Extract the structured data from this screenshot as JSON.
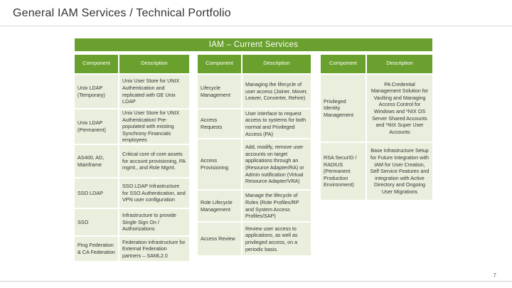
{
  "page": {
    "title": "General IAM Services / Technical Portfolio",
    "page_number": "7"
  },
  "banner": {
    "title": "IAM – Current Services"
  },
  "headers": {
    "component": "Component",
    "description": "Description"
  },
  "table1": [
    {
      "component": "Unix LDAP (Temporary)",
      "description": "Unix User Store for UNIX Authentication and replicated with GE Unix LDAP"
    },
    {
      "component": "Unix LDAP (Permanent)",
      "description": "Unix User Store for UNIX Authentication/ Pre-populated with existing Synchrony Financials employees"
    },
    {
      "component": "AS400, AD, Mainframe",
      "description": "Critical core of core assets for account provisioning, PA mgmt., and Role Mgmt."
    },
    {
      "component": "SSO LDAP",
      "description": "SSO LDAP Infrastructure for SSO Authentication, and VPN user configuration"
    },
    {
      "component": "SSO",
      "description": "Infrastructure to provide Single Sign On / Authorizations"
    },
    {
      "component": "Ping Federation & CA Federation",
      "description": "Federation infrastructure for External Federation partners – SAML2.0"
    }
  ],
  "table2": [
    {
      "component": "Lifecycle Management",
      "description": "Managing the lifecycle of user access (Joiner, Mover, Leaver, Converter, Rehire)"
    },
    {
      "component": "Access Requests",
      "description": "User interface to request access to systems for both normal and Privileged Access (PA)"
    },
    {
      "component": "Access Provisioning",
      "description": "Add, modify, remove user accounts on target applications through an (Resource Adapter/RA) or Admin notification (Virtual Resource Adapter/VRA)"
    },
    {
      "component": "Role Lifecycle Management",
      "description": "Manage the lifecycle of Roles (Role Profiles/RP and System Access Profiles/SAP)"
    },
    {
      "component": "Access Review",
      "description": "Review user access to applications, as well as privileged access, on a periodic basis."
    }
  ],
  "table3": [
    {
      "component": "Privileged Identity Management",
      "description": "PA Credential Management Solution for Vaulting and Managing Access Control for Windows and *NIX OS Server Shared Accounts and *NIX Super User Accounts"
    },
    {
      "component": "RSA SecurID / RADIUS (Permanent Production Environment)",
      "description": "Base Infrastructure Setup for Future Integration with IAM for User Creation, Self Service Features and integration with Active Directory and Ongoing User Migrations"
    }
  ]
}
